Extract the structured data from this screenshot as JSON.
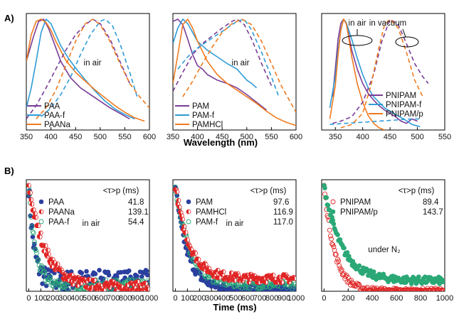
{
  "panel_labels": {
    "a": "A)",
    "b": "B)"
  },
  "x_axis_labels": {
    "wavelength": "Wavelength (nm)",
    "time": "Time (ms)"
  },
  "tau_header": "<τ>p (ms)",
  "colors": {
    "purple": "#7a3d96",
    "blue": "#2f9bd6",
    "orange": "#f07a1f",
    "navy": "#2a3f9e",
    "red": "#e02525",
    "green": "#2aa876"
  },
  "chart_data": [
    {
      "type": "line",
      "id": "A1",
      "xlim": [
        350,
        600
      ],
      "ylim": [
        0,
        1
      ],
      "xticks": [
        "350",
        "400",
        "450",
        "500",
        "550",
        "600"
      ],
      "annotations": [
        "in air"
      ],
      "series": [
        {
          "name": "PAA",
          "color": "purple",
          "dash": false,
          "x": [
            350,
            365,
            375,
            385,
            395,
            405,
            420,
            440,
            460,
            480,
            500,
            520,
            540,
            560
          ],
          "y": [
            0.62,
            0.85,
            0.98,
            1.0,
            0.92,
            0.8,
            0.62,
            0.47,
            0.38,
            0.32,
            0.26,
            0.2,
            0.15,
            0.1
          ]
        },
        {
          "name": "PAA-f",
          "color": "blue",
          "dash": false,
          "x": [
            350,
            360,
            370,
            380,
            390,
            400,
            410,
            420,
            435,
            450,
            470,
            490,
            510,
            530,
            550,
            570
          ],
          "y": [
            0.2,
            0.38,
            0.62,
            0.88,
            1.0,
            0.96,
            0.86,
            0.76,
            0.65,
            0.56,
            0.45,
            0.35,
            0.26,
            0.19,
            0.14,
            0.1
          ]
        },
        {
          "name": "PAANa",
          "color": "orange",
          "dash": false,
          "x": [
            350,
            360,
            370,
            380,
            390,
            400,
            410,
            430,
            450,
            470,
            490,
            510,
            530,
            550,
            570,
            590
          ],
          "y": [
            0.62,
            0.86,
            0.98,
            1.0,
            0.97,
            0.9,
            0.8,
            0.63,
            0.52,
            0.44,
            0.36,
            0.29,
            0.22,
            0.16,
            0.11,
            0.08
          ]
        },
        {
          "name": "",
          "color": "purple",
          "dash": true,
          "x": [
            350,
            370,
            390,
            410,
            430,
            450,
            470,
            485,
            500,
            520,
            540,
            560
          ],
          "y": [
            0.1,
            0.22,
            0.38,
            0.55,
            0.72,
            0.86,
            0.95,
            1.0,
            0.96,
            0.82,
            0.62,
            0.42
          ]
        },
        {
          "name": "",
          "color": "blue",
          "dash": true,
          "x": [
            380,
            400,
            420,
            440,
            460,
            480,
            500,
            510,
            525,
            540,
            560,
            575
          ],
          "y": [
            0.12,
            0.2,
            0.32,
            0.48,
            0.68,
            0.86,
            0.98,
            1.0,
            0.94,
            0.78,
            0.52,
            0.3
          ]
        },
        {
          "name": "",
          "color": "orange",
          "dash": true,
          "x": [
            370,
            390,
            410,
            430,
            450,
            470,
            485,
            500,
            520,
            540,
            560,
            580,
            600
          ],
          "y": [
            0.1,
            0.2,
            0.36,
            0.58,
            0.8,
            0.96,
            1.0,
            0.95,
            0.8,
            0.6,
            0.42,
            0.3,
            0.2
          ]
        }
      ]
    },
    {
      "type": "line",
      "id": "A2",
      "xlim": [
        350,
        600
      ],
      "ylim": [
        0,
        1
      ],
      "xticks": [
        "350",
        "400",
        "450",
        "500",
        "550",
        "600"
      ],
      "annotations": [
        "in air"
      ],
      "series": [
        {
          "name": "PAM",
          "color": "purple",
          "dash": false,
          "x": [
            350,
            360,
            370,
            380,
            390,
            400,
            410,
            420,
            440,
            460,
            480,
            500,
            520,
            540
          ],
          "y": [
            0.98,
            1.0,
            0.95,
            0.82,
            0.68,
            0.58,
            0.55,
            0.5,
            0.45,
            0.42,
            0.38,
            0.32,
            0.25,
            0.18
          ]
        },
        {
          "name": "PAM-f",
          "color": "blue",
          "dash": false,
          "x": [
            350,
            360,
            370,
            380,
            390,
            400,
            420,
            440,
            460,
            480,
            490,
            500,
            510,
            520
          ],
          "y": [
            0.78,
            0.92,
            1.0,
            0.96,
            0.88,
            0.8,
            0.72,
            0.66,
            0.6,
            0.55,
            0.5,
            0.45,
            0.42,
            0.38
          ]
        },
        {
          "name": "PAMHCl",
          "color": "orange",
          "dash": false,
          "x": [
            350,
            360,
            370,
            380,
            390,
            400,
            420,
            440,
            460,
            480,
            500,
            520,
            540,
            560,
            580,
            600
          ],
          "y": [
            0.42,
            0.68,
            0.95,
            1.0,
            0.92,
            0.8,
            0.62,
            0.5,
            0.42,
            0.36,
            0.3,
            0.24,
            0.17,
            0.11,
            0.07,
            0.04
          ]
        },
        {
          "name": "",
          "color": "purple",
          "dash": true,
          "x": [
            350,
            370,
            390,
            410,
            430,
            450,
            470,
            480,
            495,
            510,
            530,
            550
          ],
          "y": [
            0.35,
            0.52,
            0.68,
            0.78,
            0.85,
            0.92,
            0.98,
            1.0,
            0.95,
            0.82,
            0.6,
            0.4
          ]
        },
        {
          "name": "",
          "color": "blue",
          "dash": true,
          "x": [
            360,
            380,
            400,
            420,
            440,
            460,
            480,
            495,
            510,
            530,
            550,
            565
          ],
          "y": [
            0.55,
            0.66,
            0.74,
            0.8,
            0.86,
            0.92,
            0.98,
            1.0,
            0.9,
            0.7,
            0.48,
            0.3
          ]
        },
        {
          "name": "",
          "color": "orange",
          "dash": true,
          "x": [
            370,
            390,
            410,
            430,
            450,
            470,
            490,
            510,
            530,
            550,
            570,
            590,
            600
          ],
          "y": [
            0.3,
            0.44,
            0.6,
            0.75,
            0.88,
            0.96,
            1.0,
            0.95,
            0.8,
            0.6,
            0.4,
            0.24,
            0.16
          ]
        }
      ]
    },
    {
      "type": "line",
      "id": "A3",
      "xlim": [
        325,
        550
      ],
      "ylim": [
        0,
        1
      ],
      "xticks": [
        "350",
        "400",
        "450",
        "500",
        "550"
      ],
      "annotations": [
        "in air",
        "in vacuum"
      ],
      "series": [
        {
          "name": "PNIPAM",
          "color": "purple",
          "dash": false,
          "x": [
            345,
            350,
            355,
            360,
            365,
            370,
            375,
            380,
            390,
            400,
            410,
            420,
            430,
            440,
            450,
            460,
            470,
            480,
            490,
            500
          ],
          "y": [
            0.3,
            0.55,
            0.82,
            0.96,
            1.0,
            0.96,
            0.85,
            0.72,
            0.55,
            0.42,
            0.33,
            0.27,
            0.22,
            0.18,
            0.15,
            0.12,
            0.08,
            0.06,
            0.1,
            0.08
          ]
        },
        {
          "name": "PNIPAM-f",
          "color": "blue",
          "dash": false,
          "x": [
            340,
            350,
            355,
            360,
            365,
            370,
            380,
            390,
            400,
            410,
            420,
            440,
            460,
            475,
            490,
            505
          ],
          "y": [
            0.2,
            0.48,
            0.72,
            0.9,
            1.0,
            0.97,
            0.82,
            0.65,
            0.5,
            0.38,
            0.3,
            0.2,
            0.14,
            0.1,
            0.05,
            0.03
          ]
        },
        {
          "name": "PNIPAM/p",
          "color": "orange",
          "dash": false,
          "x": [
            340,
            350,
            355,
            360,
            365,
            370,
            375,
            380,
            390,
            400,
            410,
            420,
            430,
            440
          ],
          "y": [
            0.1,
            0.4,
            0.68,
            0.9,
            1.0,
            0.96,
            0.82,
            0.66,
            0.42,
            0.25,
            0.13,
            0.06,
            0.02,
            0.0
          ]
        },
        {
          "name": "",
          "color": "purple",
          "dash": true,
          "x": [
            345,
            360,
            380,
            400,
            420,
            435,
            450,
            465,
            480,
            495,
            510,
            520
          ],
          "y": [
            0.06,
            0.08,
            0.12,
            0.25,
            0.5,
            0.8,
            1.0,
            0.95,
            0.78,
            0.6,
            0.48,
            0.42
          ]
        },
        {
          "name": "",
          "color": "blue",
          "dash": true,
          "x": [
            340,
            370,
            400,
            430,
            460,
            490,
            505
          ],
          "y": [
            0.05,
            0.06,
            0.07,
            0.08,
            0.09,
            0.1,
            0.1
          ]
        },
        {
          "name": "",
          "color": "orange",
          "dash": true,
          "x": [
            360,
            380,
            400,
            415,
            430,
            440,
            450,
            465,
            480,
            495,
            510
          ],
          "y": [
            0.02,
            0.05,
            0.15,
            0.4,
            0.75,
            0.95,
            1.0,
            0.92,
            0.7,
            0.45,
            0.3
          ]
        }
      ]
    },
    {
      "type": "scatter",
      "id": "B1",
      "xlim": [
        -20,
        1000
      ],
      "ylim": [
        0,
        1
      ],
      "xticks": [
        "0",
        "100",
        "200",
        "300",
        "400",
        "500",
        "600",
        "700",
        "800",
        "900",
        "1000"
      ],
      "annotations": [
        "in air"
      ],
      "legend": [
        {
          "name": "PAA",
          "value": "41.8",
          "color": "navy",
          "marker": "filled"
        },
        {
          "name": "PAANa",
          "value": "139.1",
          "color": "red",
          "marker": "half"
        },
        {
          "name": "PAA-f",
          "value": "54.4",
          "color": "green",
          "marker": "open"
        }
      ],
      "series": [
        {
          "name": "PAA",
          "tau": 41.8,
          "color": "navy",
          "marker": "filled",
          "baseline": 0.1,
          "noise": 0.1
        },
        {
          "name": "PAA-f",
          "tau": 54.4,
          "color": "green",
          "marker": "open",
          "baseline": 0.06,
          "noise": 0.05
        },
        {
          "name": "PAANa",
          "tau": 139.1,
          "color": "red",
          "marker": "half",
          "baseline": 0.04,
          "noise": 0.05
        }
      ]
    },
    {
      "type": "scatter",
      "id": "B2",
      "xlim": [
        -20,
        1000
      ],
      "ylim": [
        0,
        1
      ],
      "xticks": [
        "0",
        "100",
        "200",
        "300",
        "400",
        "500",
        "600",
        "700",
        "800",
        "900",
        "1000"
      ],
      "annotations": [
        "in air"
      ],
      "legend": [
        {
          "name": "PAM",
          "value": "97.6",
          "color": "navy",
          "marker": "filled"
        },
        {
          "name": "PAMHCl",
          "value": "116.9",
          "color": "red",
          "marker": "half"
        },
        {
          "name": "PAM-f",
          "value": "117.0",
          "color": "green",
          "marker": "open"
        }
      ],
      "series": [
        {
          "name": "PAM",
          "tau": 97.6,
          "color": "navy",
          "marker": "filled",
          "baseline": 0.02,
          "noise": 0.04
        },
        {
          "name": "PAM-f",
          "tau": 117.0,
          "color": "green",
          "marker": "open",
          "baseline": 0.06,
          "noise": 0.04
        },
        {
          "name": "PAMHCl",
          "tau": 116.9,
          "color": "red",
          "marker": "half",
          "baseline": 0.12,
          "noise": 0.04
        }
      ]
    },
    {
      "type": "scatter",
      "id": "B3",
      "xlim": [
        -20,
        1000
      ],
      "ylim": [
        0,
        1
      ],
      "xticks": [
        "0",
        "200",
        "400",
        "600",
        "800",
        "1000"
      ],
      "annotations": [
        "under N₂"
      ],
      "legend": [
        {
          "name": "PNIPAM",
          "value": "89.4",
          "color": "red",
          "marker": "open"
        },
        {
          "name": "PNIPAM/p",
          "value": "143.7",
          "color": "green",
          "marker": "filled"
        }
      ],
      "series": [
        {
          "name": "PNIPAM",
          "tau": 89.4,
          "color": "red",
          "marker": "open",
          "baseline": 0.0,
          "noise": 0.03
        },
        {
          "name": "PNIPAM/p",
          "tau": 143.7,
          "color": "green",
          "marker": "filled",
          "baseline": 0.1,
          "noise": 0.035
        }
      ]
    }
  ]
}
